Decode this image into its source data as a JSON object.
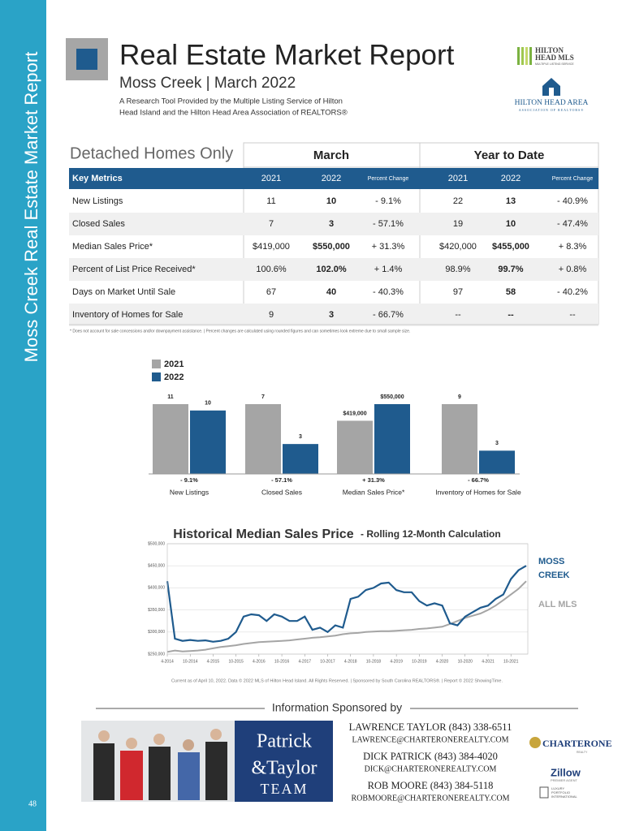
{
  "sidebar": {
    "title": "Moss Creek Real Estate Market Report",
    "page_number": "48"
  },
  "header": {
    "title": "Real Estate Market Report",
    "subtitle": "Moss Creek | March 2022",
    "description": [
      "A Research Tool Provided by the Multiple Listing Service of Hilton",
      "Head Island and the Hilton Head Area Association of REALTORS®"
    ]
  },
  "logos": {
    "mls": [
      "HILTON",
      "HEAD MLS",
      "MULTIPLE LISTING SERVICE"
    ],
    "association": [
      "HILTON HEAD AREA",
      "ASSOCIATION OF REALTORS®"
    ]
  },
  "table": {
    "title": "Detached Homes Only",
    "groups": [
      "March",
      "Year to Date"
    ],
    "columns": [
      "Key Metrics",
      "2021",
      "2022",
      "Percent Change",
      "2021",
      "2022",
      "Percent Change"
    ],
    "rows": [
      [
        "New Listings",
        "11",
        "10",
        "- 9.1%",
        "22",
        "13",
        "- 40.9%"
      ],
      [
        "Closed Sales",
        "7",
        "3",
        "- 57.1%",
        "19",
        "10",
        "- 47.4%"
      ],
      [
        "Median Sales Price*",
        "$419,000",
        "$550,000",
        "+ 31.3%",
        "$420,000",
        "$455,000",
        "+ 8.3%"
      ],
      [
        "Percent of List Price Received*",
        "100.6%",
        "102.0%",
        "+ 1.4%",
        "98.9%",
        "99.7%",
        "+ 0.8%"
      ],
      [
        "Days on Market Until Sale",
        "67",
        "40",
        "- 40.3%",
        "97",
        "58",
        "- 40.2%"
      ],
      [
        "Inventory of Homes for Sale",
        "9",
        "3",
        "- 66.7%",
        "--",
        "--",
        "--"
      ]
    ],
    "footnote": "* Does not account for sale concessions and/or downpayment assistance. | Percent changes are calculated using rounded figures and can sometimes look extreme due to small sample size."
  },
  "chart_data": [
    {
      "type": "bar",
      "categories": [
        "New Listings",
        "Closed Sales",
        "Median Sales Price*",
        "Inventory of Homes for Sale"
      ],
      "series": [
        {
          "name": "2021",
          "color": "#a5a5a5",
          "values": [
            11,
            7,
            419000,
            9
          ],
          "value_labels": [
            "11",
            "7",
            "$419,000",
            "9"
          ]
        },
        {
          "name": "2022",
          "color": "#1f5b8e",
          "values": [
            10,
            3,
            550000,
            3
          ],
          "value_labels": [
            "10",
            "3",
            "$550,000",
            "3"
          ]
        }
      ],
      "change_labels": [
        "- 9.1%",
        "- 57.1%",
        "+ 31.3%",
        "- 66.7%"
      ]
    },
    {
      "type": "line",
      "title": "Historical Median Sales Price",
      "subtitle": "- Rolling 12-Month Calculation",
      "categories": [
        "4-2014",
        null,
        null,
        "10-2014",
        null,
        null,
        "4-2015",
        null,
        null,
        "10-2015",
        null,
        null,
        "4-2016",
        null,
        null,
        "10-2016",
        null,
        null,
        "4-2017",
        null,
        null,
        "10-2017",
        null,
        null,
        "4-2018",
        null,
        null,
        "10-2018",
        null,
        null,
        "4-2019",
        null,
        null,
        "10-2019",
        null,
        null,
        "4-2020",
        null,
        null,
        "10-2020",
        null,
        null,
        "4-2021",
        null,
        null,
        "10-2021",
        null,
        null
      ],
      "series": [
        {
          "name": "MOSS CREEK",
          "color": "#1f5b8e",
          "values": [
            415000,
            285000,
            280000,
            282000,
            280000,
            281000,
            278000,
            280000,
            285000,
            300000,
            335000,
            340000,
            338000,
            325000,
            340000,
            335000,
            325000,
            325000,
            335000,
            305000,
            310000,
            300000,
            315000,
            310000,
            375000,
            380000,
            395000,
            400000,
            410000,
            412000,
            395000,
            390000,
            390000,
            370000,
            360000,
            365000,
            360000,
            320000,
            315000,
            335000,
            345000,
            355000,
            360000,
            375000,
            385000,
            420000,
            440000,
            450000
          ]
        },
        {
          "name": "ALL MLS",
          "color": "#a5a5a5",
          "values": [
            255000,
            258000,
            256000,
            257000,
            258000,
            260000,
            263000,
            266000,
            268000,
            270000,
            273000,
            275000,
            277000,
            278000,
            279000,
            280000,
            281000,
            283000,
            285000,
            287000,
            288000,
            290000,
            292000,
            295000,
            297000,
            298000,
            300000,
            301000,
            302000,
            302000,
            303000,
            304000,
            305000,
            307000,
            308000,
            310000,
            312000,
            318000,
            325000,
            332000,
            337000,
            342000,
            350000,
            360000,
            372000,
            385000,
            398000,
            415000
          ]
        }
      ],
      "ylim": [
        250000,
        500000
      ],
      "yticks": [
        {
          "value": 250000,
          "label": "$250,000"
        },
        {
          "value": 300000,
          "label": "$300,000"
        },
        {
          "value": 350000,
          "label": "$350,000"
        },
        {
          "value": 400000,
          "label": "$400,000"
        },
        {
          "value": 450000,
          "label": "$450,000"
        },
        {
          "value": 500000,
          "label": "$500,000"
        }
      ],
      "grid": true
    }
  ],
  "source": "Current as of April 10, 2022. Data © 2022 MLS of Hilton Head Island. All Rights Reserved. | Sponsored by South Carolina REALTORS®. | Report © 2022 ShowingTime.",
  "sponsor": {
    "heading": "Information Sponsored by",
    "team": [
      "Patrick",
      "&Taylor",
      "TEAM"
    ],
    "contacts": [
      [
        "LAWRENCE TAYLOR (843) 338-6511",
        "LAWRENCE@CHARTERONEREALTY.COM"
      ],
      [
        "DICK PATRICK (843) 384-4020",
        "DICK@CHARTERONEREALTY.COM"
      ],
      [
        "ROB MOORE (843) 384-5118",
        "ROBMOORE@CHARTERONEREALTY.COM"
      ]
    ],
    "brands": [
      "CHARTERONE",
      "REALTY",
      "Zillow",
      "PREMIER AGENT",
      "LUXURY",
      "PORTFOLIO",
      "INTERNATIONAL"
    ]
  }
}
